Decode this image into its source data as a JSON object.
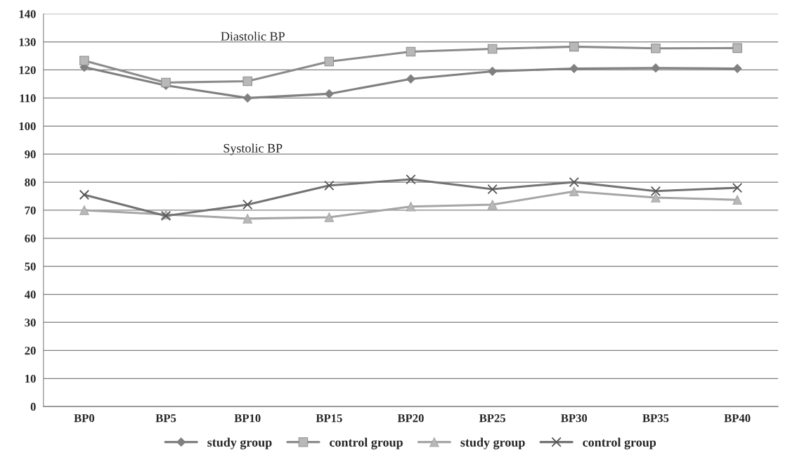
{
  "chart_data": {
    "type": "line",
    "categories": [
      "BP0",
      "BP5",
      "BP10",
      "BP15",
      "BP20",
      "BP25",
      "BP30",
      "BP35",
      "BP40"
    ],
    "series": [
      {
        "name": "study group",
        "color": "#808080",
        "marker": "diamond",
        "values": [
          121,
          114.5,
          110,
          111.5,
          116.8,
          119.5,
          120.5,
          120.7,
          120.5
        ]
      },
      {
        "name": "control group",
        "color": "#8c8c8c",
        "marker": "square",
        "values": [
          123.3,
          115.5,
          116,
          123,
          126.5,
          127.5,
          128.3,
          127.7,
          127.8
        ]
      },
      {
        "name": "study group",
        "color": "#a6a6a6",
        "marker": "triangle",
        "values": [
          70,
          68.5,
          67,
          67.5,
          71.3,
          72,
          76.7,
          74.5,
          73.7
        ]
      },
      {
        "name": "control group",
        "color": "#737373",
        "marker": "cross",
        "values": [
          75.5,
          68,
          72,
          78.8,
          81,
          77.5,
          80,
          76.8,
          78
        ]
      }
    ],
    "annotations": [
      "Diastolic BP",
      "Systolic BP"
    ],
    "ylim": [
      0,
      140
    ],
    "yticks": [
      0,
      10,
      20,
      30,
      40,
      50,
      60,
      70,
      80,
      90,
      100,
      110,
      120,
      130,
      140
    ],
    "grid": "y",
    "legend": "bottom",
    "line_style": "solid"
  }
}
